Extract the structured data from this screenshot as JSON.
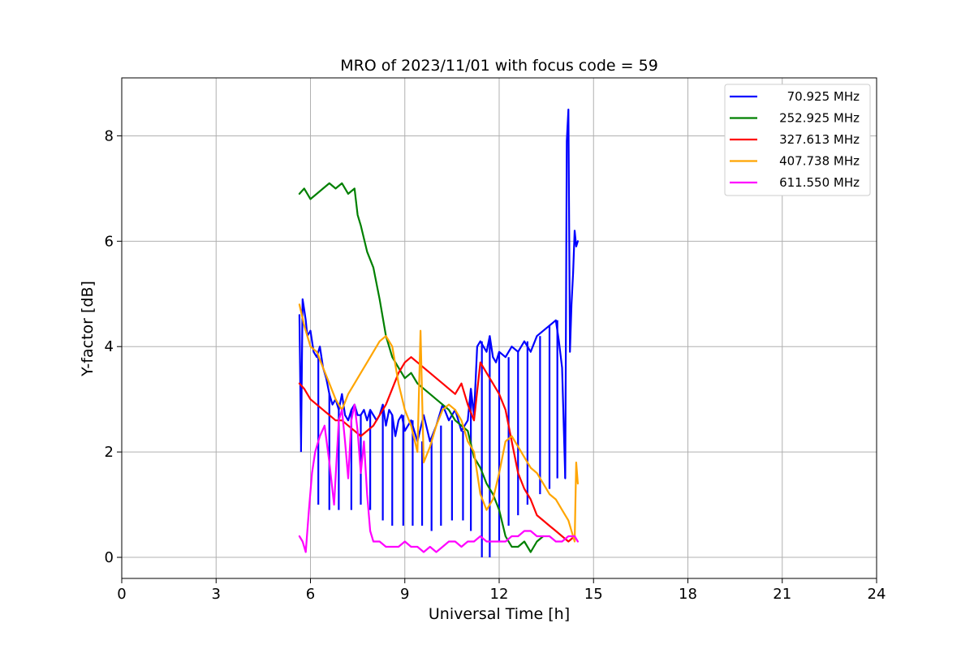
{
  "chart_data": {
    "type": "line",
    "title": "MRO of 2023/11/01 with focus code = 59",
    "xlabel": "Universal Time [h]",
    "ylabel": "Y-factor [dB]",
    "xlim": [
      0,
      24
    ],
    "ylim": [
      -0.4,
      9.1
    ],
    "xticks": [
      0,
      3,
      6,
      9,
      12,
      15,
      18,
      21,
      24
    ],
    "yticks": [
      0,
      2,
      4,
      6,
      8
    ],
    "grid": true,
    "legend_position": "top-right",
    "series": [
      {
        "name": "70.925 MHz",
        "color": "#0000ff",
        "x": [
          5.65,
          5.7,
          5.75,
          5.8,
          5.85,
          5.9,
          6.0,
          6.1,
          6.2,
          6.3,
          6.4,
          6.5,
          6.6,
          6.7,
          6.8,
          6.9,
          7.0,
          7.1,
          7.2,
          7.3,
          7.4,
          7.5,
          7.6,
          7.7,
          7.8,
          7.9,
          8.0,
          8.1,
          8.2,
          8.3,
          8.4,
          8.5,
          8.6,
          8.7,
          8.8,
          8.9,
          9.0,
          9.2,
          9.4,
          9.6,
          9.8,
          10.0,
          10.2,
          10.4,
          10.6,
          10.8,
          11.0,
          11.1,
          11.2,
          11.3,
          11.4,
          11.5,
          11.6,
          11.7,
          11.8,
          11.9,
          12.0,
          12.2,
          12.4,
          12.6,
          12.8,
          13.0,
          13.2,
          13.4,
          13.6,
          13.8,
          13.9,
          14.0,
          14.1,
          14.15,
          14.2,
          14.25,
          14.3,
          14.35,
          14.4,
          14.45,
          14.5
        ],
        "y": [
          4.6,
          2.1,
          4.9,
          4.7,
          4.5,
          4.2,
          4.3,
          3.9,
          3.8,
          4.0,
          3.6,
          3.4,
          3.1,
          2.9,
          3.0,
          2.8,
          3.1,
          2.7,
          2.6,
          2.8,
          2.9,
          2.7,
          2.7,
          2.8,
          2.6,
          2.8,
          2.7,
          2.6,
          2.7,
          2.9,
          2.5,
          2.8,
          2.7,
          2.3,
          2.6,
          2.7,
          2.4,
          2.6,
          2.2,
          2.7,
          2.2,
          2.5,
          2.9,
          2.6,
          2.8,
          2.4,
          2.6,
          3.2,
          2.7,
          4.0,
          4.1,
          4.0,
          3.9,
          4.2,
          3.8,
          3.7,
          3.9,
          3.8,
          4.0,
          3.9,
          4.1,
          3.9,
          4.2,
          4.3,
          4.4,
          4.5,
          4.1,
          3.6,
          1.5,
          7.9,
          8.5,
          3.9,
          4.8,
          5.4,
          6.2,
          5.9,
          6.0
        ],
        "dips": [
          [
            5.7,
            2.0
          ],
          [
            6.25,
            1.0
          ],
          [
            6.6,
            0.9
          ],
          [
            6.9,
            0.9
          ],
          [
            7.3,
            0.9
          ],
          [
            7.6,
            1.0
          ],
          [
            7.9,
            0.9
          ],
          [
            8.3,
            0.7
          ],
          [
            8.6,
            0.6
          ],
          [
            8.95,
            0.6
          ],
          [
            9.25,
            0.6
          ],
          [
            9.55,
            0.6
          ],
          [
            9.85,
            0.5
          ],
          [
            10.15,
            0.6
          ],
          [
            10.5,
            0.7
          ],
          [
            10.85,
            0.7
          ],
          [
            11.1,
            0.5
          ],
          [
            11.45,
            0.0
          ],
          [
            11.7,
            0.0
          ],
          [
            12.0,
            0.3
          ],
          [
            12.3,
            0.6
          ],
          [
            12.6,
            0.8
          ],
          [
            12.9,
            1.0
          ],
          [
            13.3,
            1.2
          ],
          [
            13.6,
            1.3
          ],
          [
            13.85,
            1.5
          ],
          [
            14.1,
            2.0
          ]
        ]
      },
      {
        "name": "252.925 MHz",
        "color": "#008000",
        "x": [
          5.65,
          5.8,
          6.0,
          6.2,
          6.4,
          6.6,
          6.8,
          7.0,
          7.2,
          7.4,
          7.5,
          7.6,
          7.8,
          8.0,
          8.2,
          8.4,
          8.6,
          8.8,
          9.0,
          9.2,
          9.4,
          9.6,
          9.8,
          10.0,
          10.2,
          10.4,
          10.6,
          10.8,
          11.0,
          11.2,
          11.4,
          11.6,
          11.8,
          12.0,
          12.2,
          12.4,
          12.6,
          12.8,
          13.0,
          13.2,
          13.4
        ],
        "y": [
          6.9,
          7.0,
          6.8,
          6.9,
          7.0,
          7.1,
          7.0,
          7.1,
          6.9,
          7.0,
          6.5,
          6.3,
          5.8,
          5.5,
          4.9,
          4.2,
          3.8,
          3.6,
          3.4,
          3.5,
          3.3,
          3.2,
          3.1,
          3.0,
          2.9,
          2.8,
          2.6,
          2.5,
          2.4,
          1.9,
          1.7,
          1.4,
          1.2,
          0.9,
          0.4,
          0.2,
          0.2,
          0.3,
          0.1,
          0.3,
          0.4
        ]
      },
      {
        "name": "327.613 MHz",
        "color": "#ff0000",
        "x": [
          5.65,
          5.8,
          6.0,
          6.2,
          6.4,
          6.6,
          6.8,
          7.0,
          7.2,
          7.4,
          7.6,
          7.8,
          8.0,
          8.2,
          8.4,
          8.6,
          8.8,
          9.0,
          9.2,
          9.4,
          9.6,
          9.8,
          10.0,
          10.2,
          10.4,
          10.6,
          10.8,
          11.0,
          11.2,
          11.4,
          11.6,
          11.8,
          12.0,
          12.2,
          12.4,
          12.6,
          12.8,
          13.0,
          13.2,
          13.4,
          13.6,
          13.8,
          14.0,
          14.2,
          14.4
        ],
        "y": [
          3.3,
          3.2,
          3.0,
          2.9,
          2.8,
          2.7,
          2.6,
          2.6,
          2.5,
          2.4,
          2.3,
          2.4,
          2.5,
          2.7,
          2.9,
          3.2,
          3.5,
          3.7,
          3.8,
          3.7,
          3.6,
          3.5,
          3.4,
          3.3,
          3.2,
          3.1,
          3.3,
          2.9,
          2.6,
          3.7,
          3.5,
          3.3,
          3.1,
          2.8,
          2.2,
          1.6,
          1.3,
          1.1,
          0.8,
          0.7,
          0.6,
          0.5,
          0.4,
          0.3,
          0.4
        ]
      },
      {
        "name": "407.738 MHz",
        "color": "#ffa500",
        "x": [
          5.65,
          5.8,
          6.0,
          6.2,
          6.4,
          6.6,
          6.8,
          7.0,
          7.2,
          7.4,
          7.6,
          7.8,
          8.0,
          8.2,
          8.4,
          8.6,
          8.8,
          9.0,
          9.2,
          9.4,
          9.5,
          9.6,
          9.8,
          10.0,
          10.2,
          10.4,
          10.6,
          10.8,
          11.0,
          11.2,
          11.4,
          11.6,
          11.8,
          12.0,
          12.2,
          12.4,
          12.6,
          12.8,
          13.0,
          13.2,
          13.4,
          13.6,
          13.8,
          14.0,
          14.2,
          14.3,
          14.4,
          14.45,
          14.5
        ],
        "y": [
          4.8,
          4.4,
          4.0,
          3.9,
          3.6,
          3.3,
          3.0,
          2.8,
          3.1,
          3.3,
          3.5,
          3.7,
          3.9,
          4.1,
          4.2,
          4.0,
          3.3,
          2.8,
          2.5,
          2.0,
          4.3,
          1.8,
          2.1,
          2.5,
          2.8,
          2.9,
          2.8,
          2.6,
          2.2,
          2.0,
          1.2,
          0.9,
          1.1,
          1.6,
          2.2,
          2.3,
          2.1,
          1.9,
          1.7,
          1.6,
          1.4,
          1.2,
          1.1,
          0.9,
          0.7,
          0.5,
          0.3,
          1.8,
          1.4
        ]
      },
      {
        "name": "611.550 MHz",
        "color": "#ff00ff",
        "x": [
          5.65,
          5.75,
          5.85,
          5.95,
          6.05,
          6.15,
          6.3,
          6.45,
          6.6,
          6.75,
          6.9,
          7.0,
          7.1,
          7.2,
          7.3,
          7.4,
          7.5,
          7.6,
          7.7,
          7.8,
          7.9,
          8.0,
          8.2,
          8.4,
          8.6,
          8.8,
          9.0,
          9.2,
          9.4,
          9.6,
          9.8,
          10.0,
          10.2,
          10.4,
          10.6,
          10.8,
          11.0,
          11.2,
          11.4,
          11.6,
          11.8,
          12.0,
          12.2,
          12.4,
          12.6,
          12.8,
          13.0,
          13.2,
          13.4,
          13.6,
          13.8,
          14.0,
          14.2,
          14.4,
          14.5
        ],
        "y": [
          0.4,
          0.3,
          0.1,
          0.9,
          1.6,
          2.0,
          2.3,
          2.5,
          1.8,
          1.0,
          2.6,
          2.8,
          2.2,
          1.5,
          2.6,
          2.9,
          2.4,
          1.6,
          2.2,
          1.2,
          0.5,
          0.3,
          0.3,
          0.2,
          0.2,
          0.2,
          0.3,
          0.2,
          0.2,
          0.1,
          0.2,
          0.1,
          0.2,
          0.3,
          0.3,
          0.2,
          0.3,
          0.3,
          0.4,
          0.3,
          0.3,
          0.3,
          0.3,
          0.4,
          0.4,
          0.5,
          0.5,
          0.4,
          0.4,
          0.4,
          0.3,
          0.3,
          0.4,
          0.4,
          0.3
        ]
      }
    ]
  }
}
